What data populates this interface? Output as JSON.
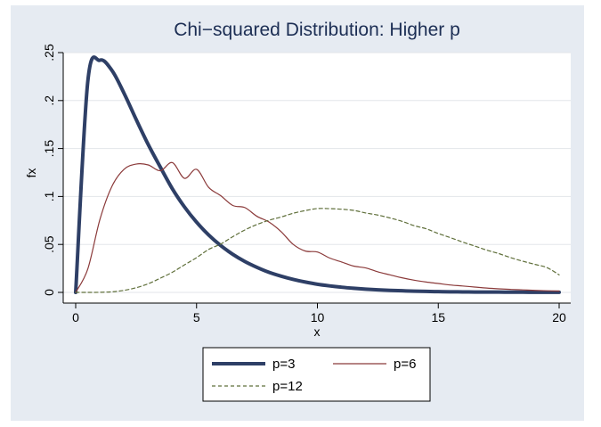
{
  "chart_data": {
    "type": "line",
    "title": "Chi−squared Distribution: Higher p",
    "xlabel": "x",
    "ylabel": "fx",
    "xlim": [
      0,
      20
    ],
    "ylim": [
      0,
      0.25
    ],
    "x_ticks": [
      0,
      5,
      10,
      15,
      20
    ],
    "x_tick_labels": [
      "0",
      "5",
      "10",
      "15",
      "20"
    ],
    "y_ticks": [
      0,
      0.05,
      0.1,
      0.15,
      0.2,
      0.25
    ],
    "y_tick_labels": [
      "0",
      ".05",
      ".1",
      ".15",
      ".2",
      ".25"
    ],
    "grid": true,
    "legend_position": "bottom",
    "x": [
      0,
      0.5,
      1,
      1.5,
      2,
      2.5,
      3,
      3.5,
      4,
      4.5,
      5,
      5.5,
      6,
      6.5,
      7,
      7.5,
      8,
      8.5,
      9,
      9.5,
      10,
      10.5,
      11,
      11.5,
      12,
      12.5,
      13,
      13.5,
      14,
      14.5,
      15,
      15.5,
      16,
      16.5,
      17,
      17.5,
      18,
      18.5,
      19,
      19.5,
      20
    ],
    "series": [
      {
        "name": "p=3",
        "color": "#2e3f66",
        "style": "solid-thick",
        "values": [
          0,
          0.2197,
          0.242,
          0.2314,
          0.2076,
          0.1804,
          0.1542,
          0.1307,
          0.108,
          0.0891,
          0.0732,
          0.0599,
          0.0488,
          0.0397,
          0.0322,
          0.0261,
          0.0209,
          0.0169,
          0.0135,
          0.0108,
          0.0085,
          0.0068,
          0.0054,
          0.0043,
          0.0034,
          0.0027,
          0.0021,
          0.0017,
          0.0013,
          0.001,
          0.0008,
          0.0006,
          0.0005,
          0.0004,
          0.0003,
          0.0003,
          0.0002,
          0.0002,
          0.0001,
          0.0001,
          0.0001
        ]
      },
      {
        "name": "p=6",
        "color": "#8b3a3a",
        "style": "solid-thin",
        "values": [
          0,
          0.0243,
          0.0758,
          0.1106,
          0.1283,
          0.1338,
          0.1329,
          0.1268,
          0.1353,
          0.1189,
          0.1283,
          0.1095,
          0.1008,
          0.0906,
          0.0884,
          0.0793,
          0.0733,
          0.0633,
          0.05,
          0.0431,
          0.0421,
          0.0359,
          0.0317,
          0.0274,
          0.0255,
          0.0214,
          0.0183,
          0.0152,
          0.0127,
          0.0108,
          0.0093,
          0.0077,
          0.0067,
          0.0056,
          0.0045,
          0.0037,
          0.0031,
          0.0026,
          0.0021,
          0.0017,
          0.0014
        ]
      },
      {
        "name": "p=12",
        "color": "#5f6f3a",
        "style": "dashed",
        "values": [
          0,
          0.0,
          0.0001,
          0.0006,
          0.0021,
          0.0049,
          0.009,
          0.0148,
          0.021,
          0.0287,
          0.0362,
          0.0448,
          0.0504,
          0.0581,
          0.0651,
          0.0708,
          0.0752,
          0.0786,
          0.0825,
          0.0853,
          0.0874,
          0.0873,
          0.0867,
          0.0855,
          0.0828,
          0.0806,
          0.0776,
          0.0741,
          0.0696,
          0.0663,
          0.0614,
          0.0571,
          0.0525,
          0.0484,
          0.0441,
          0.0405,
          0.0362,
          0.0325,
          0.0292,
          0.0258,
          0.0183
        ]
      }
    ]
  }
}
